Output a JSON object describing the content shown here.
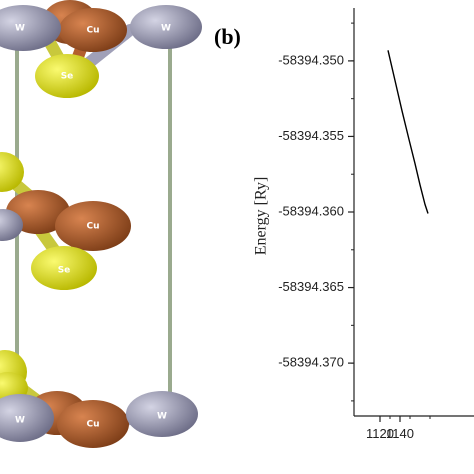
{
  "panel_label": "(b)",
  "structure": {
    "atoms": [
      {
        "element": "W",
        "label": "W",
        "color": "#8e8ea6"
      },
      {
        "element": "Cu",
        "label": "Cu",
        "color": "#b35f2e"
      },
      {
        "element": "Se",
        "label": "Se",
        "color": "#e0e020"
      }
    ],
    "bond_color": "#9aaa8e"
  },
  "chart_data": {
    "type": "line",
    "title": "",
    "xlabel": "",
    "ylabel": "Energy [Ry]",
    "xlim": [
      1110,
      1170
    ],
    "ylim": [
      -58394.3735,
      -58394.3465
    ],
    "yticks": [
      -58394.35,
      -58394.355,
      -58394.36,
      -58394.365,
      -58394.37
    ],
    "ytick_labels": [
      "-58394.350",
      "-58394.355",
      "-58394.360",
      "-58394.365",
      "-58394.370"
    ],
    "xticks": [
      1120,
      1140
    ],
    "xtick_labels": [
      "1120",
      "1140"
    ],
    "series": [
      {
        "color": "#000000",
        "x": [
          1128,
          1135,
          1142,
          1149,
          1155,
          1160,
          1165,
          1168
        ],
        "y": [
          -58394.3493,
          -58394.3513,
          -58394.3533,
          -58394.3552,
          -58394.3568,
          -58394.3582,
          -58394.3595,
          -58394.3601
        ]
      }
    ]
  }
}
